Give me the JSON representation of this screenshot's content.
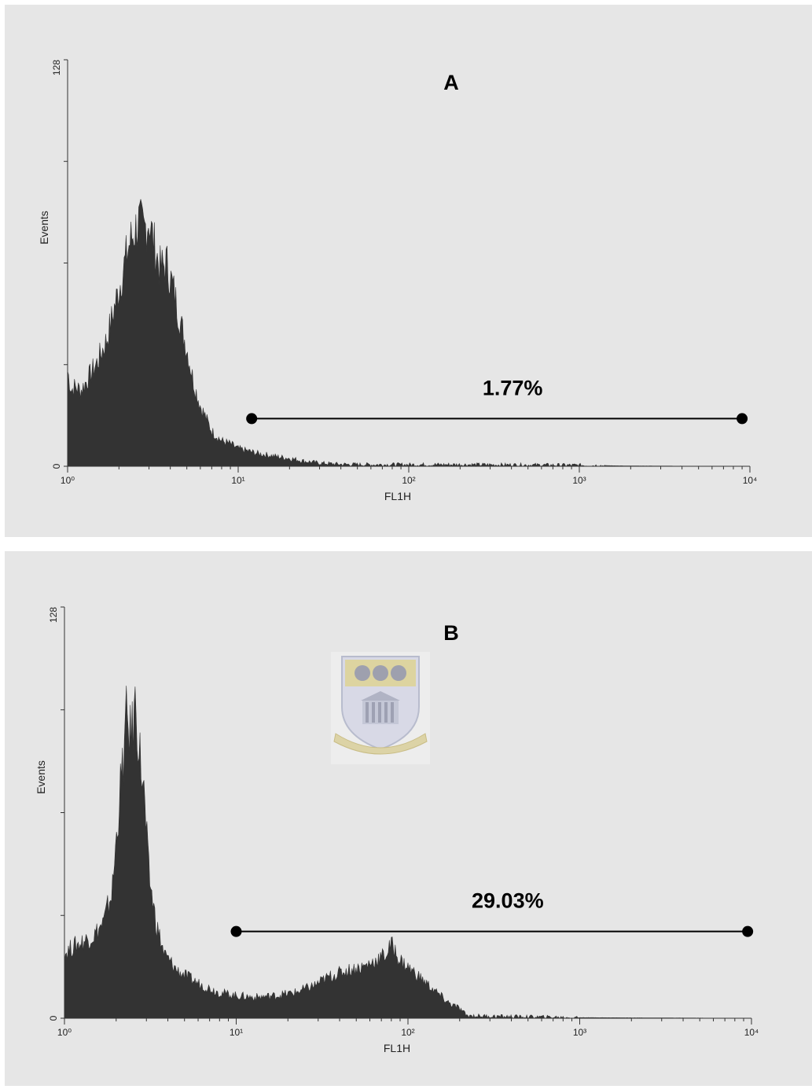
{
  "colors": {
    "panel_bg": "#e6e6e6",
    "histogram_fill": "#333333",
    "axis": "#333333",
    "gate": "#000000"
  },
  "chart_data": [
    {
      "type": "area",
      "panel_label": "A",
      "xlabel": "FL1H",
      "ylabel": "Events",
      "xscale": "log",
      "xlim": [
        1,
        10000
      ],
      "ylim": [
        0,
        128
      ],
      "x_tick_labels": [
        "10⁰",
        "10¹",
        "10²",
        "10³",
        "10⁴"
      ],
      "y_tick_labels": [
        "0",
        "128"
      ],
      "grid": false,
      "series": [
        {
          "x": [
            1,
            1.05,
            1.1,
            1.2,
            1.3,
            1.5,
            1.7,
            2.0,
            2.3,
            2.6,
            2.8,
            3.0,
            3.2,
            3.5,
            3.8,
            4.2,
            4.6,
            5.0,
            5.5,
            6.0,
            6.5,
            7.0,
            8.0,
            9.0,
            10,
            11,
            12,
            13,
            15,
            17,
            20,
            25,
            30,
            40,
            60,
            100,
            200,
            500,
            1000,
            2000,
            10000
          ],
          "y": [
            30,
            24,
            25,
            24,
            27,
            33,
            40,
            56,
            70,
            77,
            74,
            78,
            70,
            62,
            64,
            55,
            45,
            37,
            26,
            19,
            15,
            11,
            8,
            7,
            5.5,
            5,
            4.5,
            4,
            3.5,
            3,
            2.5,
            1.5,
            1,
            0.6,
            0.5,
            0.5,
            0.5,
            0.4,
            0.3,
            0.1,
            0
          ]
        }
      ],
      "gate": {
        "x_start": 12,
        "x_end": 9000,
        "y": 15,
        "label": "1.77%"
      }
    },
    {
      "type": "area",
      "panel_label": "B",
      "xlabel": "FL1H",
      "ylabel": "Events",
      "xscale": "log",
      "xlim": [
        1,
        10000
      ],
      "ylim": [
        0,
        128
      ],
      "x_tick_labels": [
        "10⁰",
        "10¹",
        "10²",
        "10³",
        "10⁴"
      ],
      "y_tick_labels": [
        "0",
        "128"
      ],
      "grid": false,
      "series": [
        {
          "x": [
            1,
            1.1,
            1.3,
            1.5,
            1.7,
            1.9,
            2.0,
            2.1,
            2.2,
            2.3,
            2.4,
            2.5,
            2.6,
            2.7,
            2.9,
            3.1,
            3.4,
            3.8,
            4.5,
            5.5,
            6.5,
            8.0,
            10,
            13,
            17,
            22,
            28,
            35,
            45,
            55,
            65,
            75,
            80,
            90,
            110,
            140,
            170,
            200,
            220,
            300,
            500,
            1000,
            10000
          ],
          "y": [
            20,
            22,
            24,
            26,
            30,
            40,
            55,
            70,
            80,
            94,
            88,
            90,
            99,
            86,
            70,
            45,
            30,
            20,
            15,
            12,
            10,
            8,
            7,
            6.5,
            7,
            8,
            10,
            13,
            15,
            16,
            18,
            20,
            23,
            18,
            14,
            9,
            5,
            3,
            0.8,
            0.6,
            0.4,
            0.2,
            0
          ]
        }
      ],
      "gate": {
        "x_start": 10,
        "x_end": 9500,
        "y": 27,
        "label": "29.03%"
      }
    }
  ]
}
